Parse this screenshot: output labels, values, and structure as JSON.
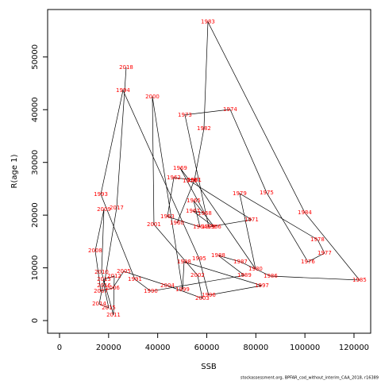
{
  "chart_data": {
    "type": "scatter",
    "xlabel": "SSB",
    "ylabel": "R(age 1)",
    "footnote": "stockassessment.org, BPFAR_cod_without_interim_CAA_2018, r16389",
    "labels": [
      "1960",
      "1961",
      "1962",
      "1963",
      "1964",
      "1965",
      "1966",
      "1967",
      "1968",
      "1969",
      "1970",
      "1971",
      "1972",
      "1973",
      "1974",
      "1975",
      "1976",
      "1977",
      "1978",
      "1979",
      "1980",
      "1981",
      "1982",
      "1983",
      "1984",
      "1985",
      "1986",
      "1987",
      "1988",
      "1989",
      "1990",
      "1991",
      "1993",
      "1994",
      "1995",
      "1996",
      "1997",
      "1998",
      "1999",
      "2000",
      "2001",
      "2002",
      "2003",
      "2004",
      "2005",
      "2006",
      "2007",
      "2008",
      "2009",
      "2010",
      "2011",
      "2012",
      "2013",
      "2014",
      "2015",
      "2016",
      "2017",
      "2018"
    ],
    "x": [
      47860,
      54980,
      46570,
      43980,
      57240,
      54650,
      63060,
      54330,
      59180,
      49160,
      53040,
      78260,
      60800,
      51100,
      69530,
      84410,
      101220,
      108020,
      105110,
      73410,
      79880,
      54980,
      58860,
      60480,
      99930,
      122250,
      86020,
      73740,
      64680,
      75350,
      37190,
      30720,
      16820,
      25870,
      56920,
      60800,
      82470,
      50770,
      50130,
      37840,
      38480,
      56270,
      58210,
      43980,
      26200,
      21670,
      16820,
      14550,
      18110,
      17140,
      21990,
      22310,
      18110,
      16170,
      20050,
      18110,
      23280,
      27170
    ],
    "values": [
      18520,
      26660,
      27110,
      19730,
      17770,
      22740,
      17770,
      20780,
      20330,
      28920,
      26510,
      19130,
      17770,
      39010,
      40060,
      24250,
      11140,
      12800,
      15360,
      24100,
      9790,
      26660,
      36450,
      56630,
      20480,
      7680,
      8430,
      11140,
      12350,
      8580,
      5570,
      7830,
      23950,
      43670,
      11750,
      4820,
      6630,
      11140,
      5870,
      42470,
      18220,
      8580,
      4220,
      6630,
      9340,
      6170,
      5570,
      13250,
      21080,
      9190,
      1050,
      8430,
      7830,
      3160,
      2410,
      6630,
      21380,
      48040
    ],
    "line_color": "#000000",
    "label_color": "#ff0000",
    "xlim": [
      -4850,
      126800
    ],
    "ylim": [
      -2400,
      59000
    ],
    "xticks": [
      0,
      20000,
      40000,
      60000,
      80000,
      100000,
      120000
    ],
    "yticks": [
      0,
      10000,
      20000,
      30000,
      40000,
      50000
    ]
  }
}
